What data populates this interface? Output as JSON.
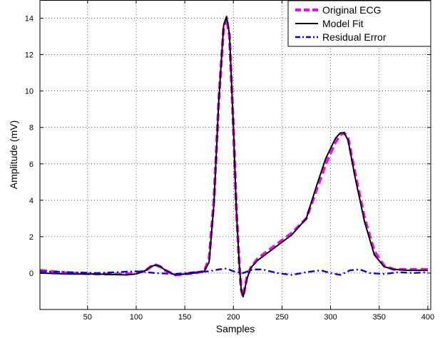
{
  "chart_data": {
    "type": "line",
    "title": "",
    "xlabel": "Samples",
    "ylabel": "Amplitude (mV)",
    "xlim": [
      1,
      403
    ],
    "ylim": [
      -2,
      15
    ],
    "xticks": [
      50,
      100,
      150,
      200,
      250,
      300,
      350,
      400
    ],
    "yticks": [
      0,
      2,
      4,
      6,
      8,
      10,
      12,
      14
    ],
    "grid": true,
    "legend_position": "top-right",
    "series": [
      {
        "name": "Original ECG",
        "color": "#ff00ff",
        "style": "dashed",
        "x": [
          1,
          30,
          60,
          90,
          100,
          110,
          115,
          120,
          125,
          130,
          140,
          150,
          160,
          170,
          175,
          180,
          185,
          190,
          193,
          196,
          200,
          203,
          206,
          208,
          210,
          214,
          218,
          225,
          240,
          260,
          275,
          285,
          295,
          305,
          310,
          314,
          318,
          325,
          335,
          345,
          355,
          365,
          380,
          400
        ],
        "values": [
          0.15,
          0.0,
          -0.05,
          -0.05,
          0.0,
          0.15,
          0.35,
          0.45,
          0.35,
          0.15,
          -0.1,
          -0.05,
          0.0,
          0.1,
          0.8,
          4.0,
          9.5,
          13.5,
          14.0,
          13.0,
          8.0,
          3.5,
          0.5,
          -0.9,
          -1.3,
          -0.2,
          0.3,
          0.8,
          1.4,
          2.2,
          3.0,
          4.5,
          6.0,
          7.2,
          7.6,
          7.7,
          7.4,
          5.5,
          3.0,
          1.2,
          0.4,
          0.2,
          0.2,
          0.2
        ]
      },
      {
        "name": "Model Fit",
        "color": "#000000",
        "style": "solid",
        "x": [
          1,
          30,
          60,
          90,
          100,
          110,
          115,
          120,
          125,
          130,
          140,
          150,
          160,
          170,
          175,
          180,
          185,
          190,
          193,
          196,
          200,
          203,
          206,
          208,
          210,
          214,
          218,
          225,
          240,
          260,
          275,
          285,
          295,
          305,
          310,
          314,
          318,
          325,
          335,
          345,
          355,
          365,
          380,
          400
        ],
        "values": [
          0.0,
          -0.05,
          -0.05,
          -0.1,
          -0.05,
          0.15,
          0.35,
          0.45,
          0.35,
          0.15,
          -0.1,
          -0.05,
          0.0,
          0.1,
          0.6,
          3.8,
          9.5,
          13.6,
          14.1,
          13.1,
          8.0,
          3.5,
          0.5,
          -0.9,
          -1.3,
          -0.3,
          0.3,
          0.7,
          1.3,
          2.1,
          3.0,
          4.7,
          6.3,
          7.4,
          7.7,
          7.7,
          7.3,
          5.3,
          2.8,
          1.0,
          0.35,
          0.2,
          0.15,
          0.15
        ]
      },
      {
        "name": "Residual Error",
        "color": "#0000ff",
        "style": "dashdot",
        "x": [
          1,
          30,
          60,
          80,
          100,
          120,
          140,
          160,
          175,
          185,
          193,
          200,
          210,
          220,
          230,
          245,
          260,
          275,
          290,
          300,
          310,
          320,
          330,
          340,
          355,
          370,
          385,
          400
        ],
        "values": [
          0.1,
          0.05,
          0.0,
          0.05,
          0.1,
          0.0,
          -0.05,
          0.05,
          0.1,
          0.2,
          0.25,
          0.1,
          0.0,
          0.2,
          0.2,
          0.0,
          -0.1,
          0.05,
          0.15,
          0.0,
          -0.1,
          0.15,
          0.2,
          0.0,
          -0.05,
          0.05,
          0.0,
          0.05
        ]
      }
    ]
  }
}
